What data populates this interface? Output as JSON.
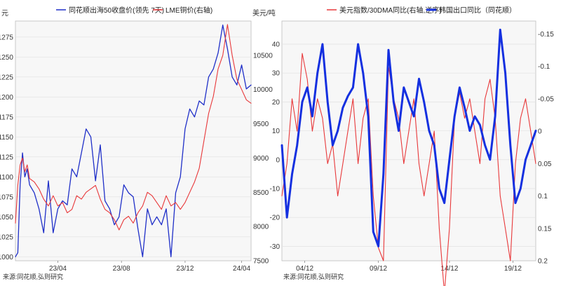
{
  "chart_data": [
    {
      "type": "line",
      "title": "",
      "legend_placement": "top-center",
      "y_left_unit": "元",
      "y_right_unit": "美元/吨",
      "source": "来源:同花顺,弘则研究",
      "x_ticks": [
        "23/04",
        "23/08",
        "23/12",
        "24/04"
      ],
      "x_tick_positions": [
        0.18,
        0.45,
        0.72,
        0.96
      ],
      "ylim_left": [
        995,
        1295
      ],
      "ylim_right": [
        7500,
        11000
      ],
      "y_ticks_left": [
        1000,
        1025,
        1050,
        1075,
        1100,
        1125,
        1150,
        1175,
        1200,
        1225,
        1250,
        1275
      ],
      "y_ticks_right": [
        7500,
        8000,
        8500,
        9000,
        9500,
        10000,
        10500
      ],
      "grid": true,
      "series": [
        {
          "name": "同花顺出海50收盘价(领先 7天)",
          "axis": "left",
          "color": "#1f2fc8",
          "width": 1.3,
          "x": [
            0,
            0.01,
            0.02,
            0.03,
            0.04,
            0.05,
            0.06,
            0.08,
            0.1,
            0.12,
            0.14,
            0.16,
            0.18,
            0.2,
            0.22,
            0.24,
            0.26,
            0.28,
            0.3,
            0.32,
            0.34,
            0.36,
            0.38,
            0.4,
            0.42,
            0.44,
            0.46,
            0.48,
            0.5,
            0.52,
            0.54,
            0.56,
            0.58,
            0.6,
            0.62,
            0.64,
            0.66,
            0.68,
            0.7,
            0.72,
            0.74,
            0.76,
            0.78,
            0.8,
            0.82,
            0.84,
            0.86,
            0.88,
            0.9,
            0.92,
            0.94,
            0.96,
            0.98,
            1.0
          ],
          "values": [
            1000,
            1005,
            1090,
            1130,
            1100,
            1110,
            1090,
            1080,
            1060,
            1030,
            1095,
            1030,
            1060,
            1070,
            1065,
            1110,
            1100,
            1130,
            1160,
            1150,
            1095,
            1140,
            1070,
            1060,
            1040,
            1050,
            1090,
            1080,
            1075,
            1035,
            1000,
            1060,
            1040,
            1050,
            1040,
            1060,
            1000,
            1080,
            1100,
            1160,
            1185,
            1175,
            1195,
            1190,
            1225,
            1235,
            1255,
            1290,
            1260,
            1225,
            1215,
            1240,
            1210,
            1215
          ]
        },
        {
          "name": "LME铜价(右轴)",
          "axis": "right",
          "color": "#e8383a",
          "width": 1.1,
          "x": [
            0,
            0.01,
            0.02,
            0.03,
            0.04,
            0.05,
            0.06,
            0.08,
            0.1,
            0.12,
            0.14,
            0.16,
            0.18,
            0.2,
            0.22,
            0.24,
            0.26,
            0.28,
            0.3,
            0.32,
            0.34,
            0.36,
            0.38,
            0.4,
            0.42,
            0.44,
            0.46,
            0.48,
            0.5,
            0.52,
            0.54,
            0.56,
            0.58,
            0.6,
            0.62,
            0.64,
            0.66,
            0.68,
            0.7,
            0.72,
            0.74,
            0.76,
            0.78,
            0.8,
            0.82,
            0.84,
            0.86,
            0.88,
            0.9,
            0.92,
            0.94,
            0.96,
            0.98,
            1.0
          ],
          "values": [
            8050,
            8600,
            8900,
            9000,
            8800,
            8900,
            8700,
            8650,
            8550,
            8400,
            8300,
            8450,
            8300,
            8350,
            8200,
            8250,
            8450,
            8400,
            8500,
            8550,
            8600,
            8400,
            8250,
            8200,
            8100,
            7950,
            8100,
            8150,
            8050,
            8200,
            8300,
            8500,
            8450,
            8350,
            8250,
            8450,
            8300,
            8350,
            8250,
            8350,
            8500,
            8650,
            8850,
            9250,
            9650,
            9900,
            10300,
            10500,
            10950,
            10500,
            10150,
            10000,
            9850,
            9800
          ]
        }
      ]
    },
    {
      "type": "line",
      "title": "",
      "legend_placement": "top-center",
      "source": "来源:同花顺,弘则研究",
      "x_ticks": [
        "04/12",
        "09/12",
        "14/12",
        "19/12"
      ],
      "x_tick_positions": [
        0.09,
        0.38,
        0.66,
        0.91
      ],
      "ylim_left": [
        -35,
        48
      ],
      "ylim_right": [
        0.2,
        -0.17
      ],
      "y_ticks_left": [
        -30,
        -20,
        -10,
        0,
        10,
        20,
        30,
        40
      ],
      "y_ticks_right": [
        -0.15,
        -0.1,
        -0.05,
        0,
        0.05,
        0.1,
        0.15,
        0.2
      ],
      "right_axis_inverted": true,
      "grid": true,
      "series": [
        {
          "name": "美元指数/30DMA同比(右轴,逆序)",
          "axis": "right",
          "color": "#e8383a",
          "width": 1.1,
          "x": [
            0,
            0.02,
            0.04,
            0.06,
            0.08,
            0.1,
            0.12,
            0.14,
            0.16,
            0.18,
            0.2,
            0.22,
            0.24,
            0.26,
            0.28,
            0.3,
            0.32,
            0.34,
            0.36,
            0.38,
            0.4,
            0.42,
            0.44,
            0.46,
            0.48,
            0.5,
            0.52,
            0.54,
            0.56,
            0.58,
            0.6,
            0.62,
            0.64,
            0.66,
            0.68,
            0.7,
            0.72,
            0.74,
            0.76,
            0.78,
            0.8,
            0.82,
            0.84,
            0.86,
            0.88,
            0.9,
            0.92,
            0.94,
            0.96,
            0.98,
            1.0
          ],
          "values": [
            0.1,
            0.05,
            -0.05,
            0,
            -0.12,
            -0.08,
            0,
            -0.05,
            -0.02,
            0.05,
            0.02,
            0.1,
            0.05,
            0,
            -0.05,
            0.05,
            -0.02,
            -0.05,
            0.1,
            0.18,
            0.2,
            -0.1,
            -0.05,
            -0.02,
            0.05,
            0,
            -0.05,
            0.05,
            0.1,
            0.05,
            0,
            0.15,
            0.25,
            0.15,
            -0.02,
            -0.06,
            -0.02,
            -0.05,
            0,
            0.05,
            -0.05,
            -0.08,
            -0.02,
            0.1,
            0.15,
            0.2,
            0.05,
            -0.02,
            -0.05,
            0,
            0.05
          ]
        },
        {
          "name": "韩国出口同比（同花顺）",
          "axis": "left",
          "color": "#1430e0",
          "width": 3,
          "x": [
            0,
            0.02,
            0.04,
            0.06,
            0.08,
            0.1,
            0.12,
            0.14,
            0.16,
            0.18,
            0.2,
            0.22,
            0.24,
            0.26,
            0.28,
            0.3,
            0.32,
            0.34,
            0.36,
            0.38,
            0.4,
            0.42,
            0.44,
            0.46,
            0.48,
            0.5,
            0.52,
            0.54,
            0.56,
            0.58,
            0.6,
            0.62,
            0.64,
            0.66,
            0.68,
            0.7,
            0.72,
            0.74,
            0.76,
            0.78,
            0.8,
            0.82,
            0.84,
            0.86,
            0.88,
            0.9,
            0.92,
            0.94,
            0.96,
            0.98,
            1.0
          ],
          "values": [
            5,
            -20,
            -5,
            5,
            20,
            25,
            15,
            30,
            40,
            20,
            5,
            10,
            18,
            22,
            25,
            40,
            30,
            15,
            -25,
            -30,
            -5,
            38,
            20,
            10,
            25,
            20,
            15,
            28,
            20,
            10,
            5,
            -10,
            -15,
            0,
            15,
            25,
            18,
            10,
            15,
            12,
            5,
            0,
            15,
            45,
            30,
            5,
            -15,
            -10,
            0,
            5,
            10
          ]
        }
      ]
    }
  ]
}
